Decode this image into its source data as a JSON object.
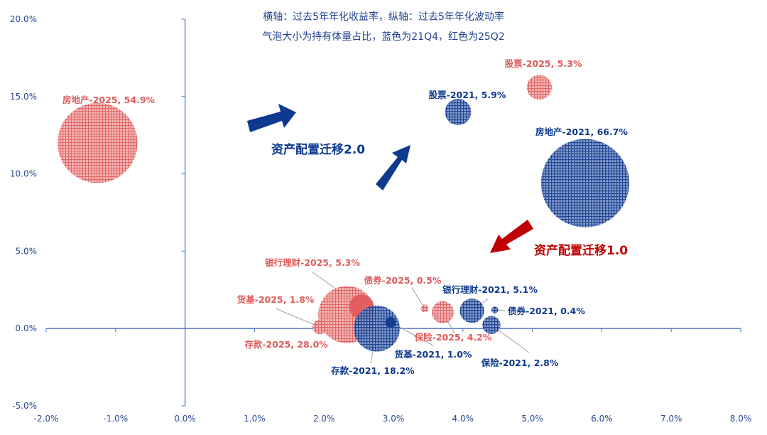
{
  "chart_data": {
    "type": "bubble",
    "notes": [
      "横轴：过去5年年化收益率，纵轴：过去5年年化波动率",
      "气泡大小为持有体量占比，蓝色为21Q4，红色为25Q2"
    ],
    "xlim": [
      -2.0,
      8.0
    ],
    "ylim": [
      -5.0,
      20.0
    ],
    "x_ticks": [
      "-2.0%",
      "-1.0%",
      "0.0%",
      "1.0%",
      "2.0%",
      "3.0%",
      "4.0%",
      "5.0%",
      "6.0%",
      "7.0%",
      "8.0%"
    ],
    "y_ticks": [
      "20.0%",
      "15.0%",
      "10.0%",
      "5.0%",
      "0.0%",
      "-5.0%"
    ],
    "grid": false,
    "colors": {
      "2021": "#0d3a8f",
      "2025": "#e05a5a"
    },
    "series": [
      {
        "key": "2025",
        "points": [
          {
            "label": "房地产-2025, 54.9%",
            "x": -1.26,
            "y": 12.0,
            "size": 54.9
          },
          {
            "label": "股票-2025, 5.3%",
            "x": 5.1,
            "y": 15.6,
            "size": 5.3
          },
          {
            "label": "存款-2025, 28.0%",
            "x": 2.33,
            "y": 0.9,
            "size": 28.0
          },
          {
            "label": "银行理财-2025, 5.3%",
            "x": 2.54,
            "y": 1.4,
            "size": 5.3
          },
          {
            "label": "货基-2025, 1.8%",
            "x": 1.94,
            "y": 0.1,
            "size": 1.8
          },
          {
            "label": "债券-2025, 0.5%",
            "x": 3.45,
            "y": 1.3,
            "size": 0.5
          },
          {
            "label": "保险-2025, 4.2%",
            "x": 3.71,
            "y": 1.05,
            "size": 4.2
          }
        ]
      },
      {
        "key": "2021",
        "points": [
          {
            "label": "房地产-2021, 66.7%",
            "x": 5.76,
            "y": 9.4,
            "size": 66.7
          },
          {
            "label": "股票-2021, 5.9%",
            "x": 3.93,
            "y": 14.0,
            "size": 5.9
          },
          {
            "label": "存款-2021, 18.2%",
            "x": 2.76,
            "y": 0.0,
            "size": 18.2
          },
          {
            "label": "货基-2021, 1.0%",
            "x": 2.96,
            "y": 0.4,
            "size": 1.0
          },
          {
            "label": "银行理财-2021, 5.1%",
            "x": 4.13,
            "y": 1.15,
            "size": 5.1
          },
          {
            "label": "债券-2021, 0.4%",
            "x": 4.46,
            "y": 1.2,
            "size": 0.4
          },
          {
            "label": "保险-2021, 2.8%",
            "x": 4.41,
            "y": 0.23,
            "size": 2.8
          }
        ]
      }
    ],
    "annotations": [
      {
        "text": "资产配置迁移2.0",
        "color": "#0d3a8f"
      },
      {
        "text": "资产配置迁移1.0",
        "color": "#c00000"
      }
    ]
  }
}
